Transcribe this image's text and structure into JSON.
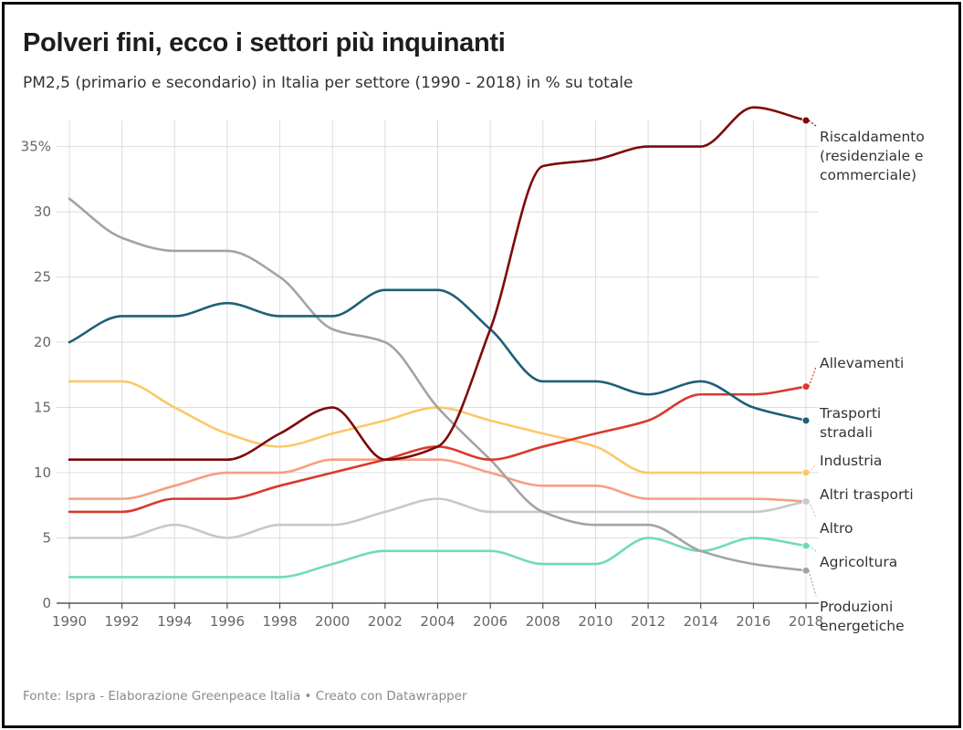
{
  "header": {
    "title": "Polveri fini, ecco i settori più inquinanti",
    "subtitle": "PM2,5 (primario e secondario) in Italia per settore (1990 - 2018) in % su totale"
  },
  "footer": {
    "source": "Fonte: Ispra - Elaborazione Greenpeace Italia • Creato con Datawrapper"
  },
  "chart_data": {
    "type": "line",
    "title": "Polveri fini, ecco i settori più inquinanti",
    "subtitle": "PM2,5 (primario e secondario) in Italia per settore (1990 - 2018) in % su totale",
    "xlabel": "",
    "ylabel": "",
    "x": [
      1990,
      1992,
      1994,
      1996,
      1998,
      2000,
      2002,
      2004,
      2006,
      2008,
      2010,
      2012,
      2014,
      2016,
      2018
    ],
    "xlim": [
      1990,
      2018
    ],
    "ylim": [
      0,
      37
    ],
    "yticks": [
      0,
      5,
      10,
      15,
      20,
      25,
      30,
      35
    ],
    "ytick_labels": [
      "0",
      "5",
      "10",
      "15",
      "20",
      "25",
      "30",
      "35%"
    ],
    "xticks": [
      1990,
      1992,
      1994,
      1996,
      1998,
      2000,
      2002,
      2004,
      2006,
      2008,
      2010,
      2012,
      2014,
      2016,
      2018
    ],
    "grid": true,
    "legend": "direct labels at right end of lines",
    "series": [
      {
        "name": "Riscaldamento (residenziale e commerciale)",
        "label_lines": [
          "Riscaldamento",
          "(residenziale e",
          "commerciale)"
        ],
        "color": "#7c0a0a",
        "values": [
          11,
          11,
          11,
          11,
          13,
          15,
          11,
          12,
          21,
          33.5,
          34,
          35,
          35,
          38,
          37
        ]
      },
      {
        "name": "Allevamenti",
        "label_lines": [
          "Allevamenti"
        ],
        "color": "#d9392f",
        "values": [
          7,
          7,
          8,
          8,
          9,
          10,
          11,
          12,
          11,
          12,
          13,
          14,
          16,
          16,
          16.6
        ]
      },
      {
        "name": "Trasporti stradali",
        "label_lines": [
          "Trasporti",
          "stradali"
        ],
        "color": "#1e5f78",
        "values": [
          20,
          22,
          22,
          23,
          22,
          22,
          24,
          24,
          21,
          17,
          17,
          16,
          17,
          15,
          14
        ]
      },
      {
        "name": "Industria",
        "label_lines": [
          "Industria"
        ],
        "color": "#fbc86a",
        "values": [
          17,
          17,
          15,
          13,
          12,
          13,
          14,
          15,
          14,
          13,
          12,
          10,
          10,
          10,
          10
        ]
      },
      {
        "name": "Altri trasporti",
        "label_lines": [
          "Altri trasporti"
        ],
        "color": "#f59f82",
        "values": [
          8,
          8,
          9,
          10,
          10,
          11,
          11,
          11,
          10,
          9,
          9,
          8,
          8,
          8,
          7.8
        ]
      },
      {
        "name": "Altro",
        "label_lines": [
          "Altro"
        ],
        "color": "#c8c8c8",
        "values": [
          5,
          5,
          6,
          5,
          6,
          6,
          7,
          8,
          7,
          7,
          7,
          7,
          7,
          7,
          7.8
        ]
      },
      {
        "name": "Agricoltura",
        "label_lines": [
          "Agricoltura"
        ],
        "color": "#6ddcb6",
        "values": [
          2,
          2,
          2,
          2,
          2,
          3,
          4,
          4,
          4,
          3,
          3,
          5,
          4,
          5,
          4.4
        ]
      },
      {
        "name": "Produzioni energetiche",
        "label_lines": [
          "Produzioni",
          "energetiche"
        ],
        "color": "#a3a3a3",
        "values": [
          31,
          28,
          27,
          27,
          25,
          21,
          20,
          15,
          11,
          7,
          6,
          6,
          4,
          3,
          2.5
        ]
      }
    ]
  }
}
